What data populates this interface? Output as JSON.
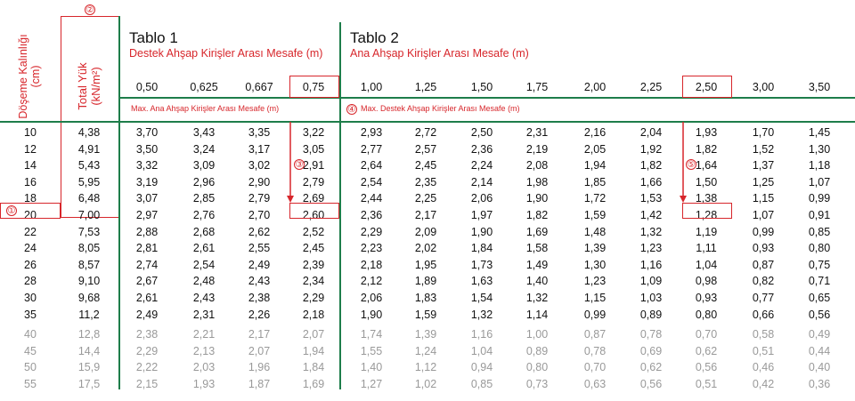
{
  "side_labels": {
    "doseme": "Döşeme Kalınlığı",
    "doseme_unit": "(cm)",
    "total_yuk": "Total Yük",
    "total_yuk_unit": "(kN/m²)"
  },
  "tablo1": {
    "title": "Tablo 1",
    "subtitle": "Destek Ahşap Kirişler Arası Mesafe (m)",
    "max_label": "Max. Ana Ahşap Kirişler Arası Mesafe (m)",
    "columns": [
      "0,50",
      "0,625",
      "0,667",
      "0,75"
    ]
  },
  "tablo2": {
    "title": "Tablo 2",
    "subtitle": "Ana Ahşap Kirişler Arası Mesafe (m)",
    "max_label": "Max. Destek Ahşap Kirişler Arası Mesafe (m)",
    "columns": [
      "1,00",
      "1,25",
      "1,50",
      "1,75",
      "2,00",
      "2,25",
      "2,50",
      "3,00",
      "3,50"
    ]
  },
  "markers": {
    "m1": "①",
    "m2": "②",
    "m3": "③",
    "m4": "④",
    "m5": "⑤"
  },
  "rows": [
    {
      "d": "10",
      "y": "4,38",
      "t1": [
        "3,70",
        "3,43",
        "3,35",
        "3,22"
      ],
      "t2": [
        "2,93",
        "2,72",
        "2,50",
        "2,31",
        "2,16",
        "2,04",
        "1,93",
        "1,70",
        "1,45"
      ]
    },
    {
      "d": "12",
      "y": "4,91",
      "t1": [
        "3,50",
        "3,24",
        "3,17",
        "3,05"
      ],
      "t2": [
        "2,77",
        "2,57",
        "2,36",
        "2,19",
        "2,05",
        "1,92",
        "1,82",
        "1,52",
        "1,30"
      ]
    },
    {
      "d": "14",
      "y": "5,43",
      "t1": [
        "3,32",
        "3,09",
        "3,02",
        "2,91"
      ],
      "t2": [
        "2,64",
        "2,45",
        "2,24",
        "2,08",
        "1,94",
        "1,82",
        "1,64",
        "1,37",
        "1,18"
      ]
    },
    {
      "d": "16",
      "y": "5,95",
      "t1": [
        "3,19",
        "2,96",
        "2,90",
        "2,79"
      ],
      "t2": [
        "2,54",
        "2,35",
        "2,14",
        "1,98",
        "1,85",
        "1,66",
        "1,50",
        "1,25",
        "1,07"
      ]
    },
    {
      "d": "18",
      "y": "6,48",
      "t1": [
        "3,07",
        "2,85",
        "2,79",
        "2,69"
      ],
      "t2": [
        "2,44",
        "2,25",
        "2,06",
        "1,90",
        "1,72",
        "1,53",
        "1,38",
        "1,15",
        "0,99"
      ]
    },
    {
      "d": "20",
      "y": "7,00",
      "t1": [
        "2,97",
        "2,76",
        "2,70",
        "2,60"
      ],
      "t2": [
        "2,36",
        "2,17",
        "1,97",
        "1,82",
        "1,59",
        "1,42",
        "1,28",
        "1,07",
        "0,91"
      ]
    },
    {
      "d": "22",
      "y": "7,53",
      "t1": [
        "2,88",
        "2,68",
        "2,62",
        "2,52"
      ],
      "t2": [
        "2,29",
        "2,09",
        "1,90",
        "1,69",
        "1,48",
        "1,32",
        "1,19",
        "0,99",
        "0,85"
      ]
    },
    {
      "d": "24",
      "y": "8,05",
      "t1": [
        "2,81",
        "2,61",
        "2,55",
        "2,45"
      ],
      "t2": [
        "2,23",
        "2,02",
        "1,84",
        "1,58",
        "1,39",
        "1,23",
        "1,11",
        "0,93",
        "0,80"
      ]
    },
    {
      "d": "26",
      "y": "8,57",
      "t1": [
        "2,74",
        "2,54",
        "2,49",
        "2,39"
      ],
      "t2": [
        "2,18",
        "1,95",
        "1,73",
        "1,49",
        "1,30",
        "1,16",
        "1,04",
        "0,87",
        "0,75"
      ]
    },
    {
      "d": "28",
      "y": "9,10",
      "t1": [
        "2,67",
        "2,48",
        "2,43",
        "2,34"
      ],
      "t2": [
        "2,12",
        "1,89",
        "1,63",
        "1,40",
        "1,23",
        "1,09",
        "0,98",
        "0,82",
        "0,71"
      ]
    },
    {
      "d": "30",
      "y": "9,68",
      "t1": [
        "2,61",
        "2,43",
        "2,38",
        "2,29"
      ],
      "t2": [
        "2,06",
        "1,83",
        "1,54",
        "1,32",
        "1,15",
        "1,03",
        "0,93",
        "0,77",
        "0,65"
      ]
    },
    {
      "d": "35",
      "y": "11,2",
      "t1": [
        "2,49",
        "2,31",
        "2,26",
        "2,18"
      ],
      "t2": [
        "1,90",
        "1,59",
        "1,32",
        "1,14",
        "0,99",
        "0,89",
        "0,80",
        "0,66",
        "0,56"
      ]
    }
  ],
  "rows_light": [
    {
      "d": "40",
      "y": "12,8",
      "t1": [
        "2,38",
        "2,21",
        "2,17",
        "2,07"
      ],
      "t2": [
        "1,74",
        "1,39",
        "1,16",
        "1,00",
        "0,87",
        "0,78",
        "0,70",
        "0,58",
        "0,49"
      ]
    },
    {
      "d": "45",
      "y": "14,4",
      "t1": [
        "2,29",
        "2,13",
        "2,07",
        "1,94"
      ],
      "t2": [
        "1,55",
        "1,24",
        "1,04",
        "0,89",
        "0,78",
        "0,69",
        "0,62",
        "0,51",
        "0,44"
      ]
    },
    {
      "d": "50",
      "y": "15,9",
      "t1": [
        "2,22",
        "2,03",
        "1,96",
        "1,84"
      ],
      "t2": [
        "1,40",
        "1,12",
        "0,94",
        "0,80",
        "0,70",
        "0,62",
        "0,56",
        "0,46",
        "0,40"
      ]
    },
    {
      "d": "55",
      "y": "17,5",
      "t1": [
        "2,15",
        "1,93",
        "1,87",
        "1,69"
      ],
      "t2": [
        "1,27",
        "1,02",
        "0,85",
        "0,73",
        "0,63",
        "0,56",
        "0,51",
        "0,42",
        "0,36"
      ]
    }
  ]
}
